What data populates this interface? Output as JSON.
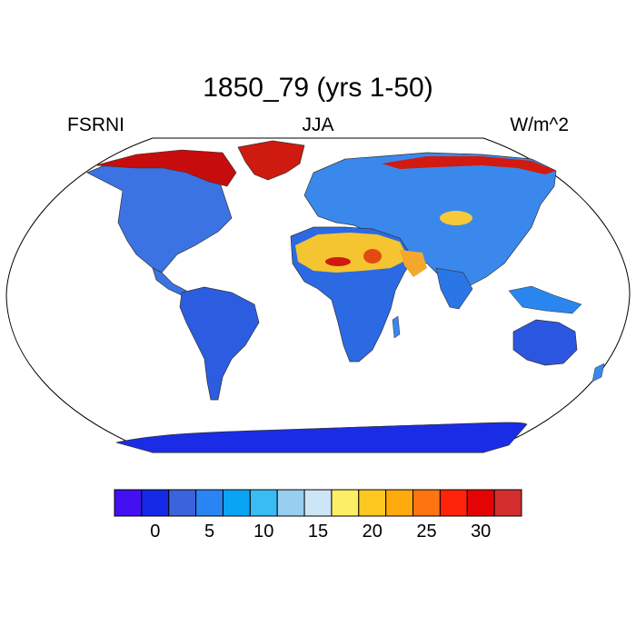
{
  "title": "1850_79 (yrs 1-50)",
  "left_label": "FSRNI",
  "center_label": "JJA",
  "right_label": "W/m^2",
  "colorbar": {
    "colors": [
      "#4410f2",
      "#1429e6",
      "#3b63dc",
      "#2a85f2",
      "#0aa4f5",
      "#39bbf3",
      "#98cff0",
      "#cde6f7",
      "#fdef65",
      "#fdc920",
      "#fea90c",
      "#fd7410",
      "#fe2409",
      "#e40405",
      "#d32f2f"
    ],
    "tick_labels": [
      "0",
      "5",
      "10",
      "15",
      "20",
      "25",
      "30"
    ]
  },
  "chart_data": {
    "type": "heatmap",
    "title": "1850_79 (yrs 1-50)",
    "variable": "FSRNI",
    "season": "JJA",
    "units": "W/m^2",
    "projection": "Robinson",
    "levels_ticks": [
      0,
      5,
      10,
      15,
      20,
      25,
      30
    ],
    "regions": [
      {
        "name": "Greenland",
        "value": 32
      },
      {
        "name": "Arctic coast",
        "value": 30
      },
      {
        "name": "Sahara",
        "value": 27
      },
      {
        "name": "Arabia",
        "value": 20
      },
      {
        "name": "Tibet",
        "value": 17
      },
      {
        "name": "North America",
        "value": 5
      },
      {
        "name": "South America",
        "value": 3
      },
      {
        "name": "Africa south",
        "value": 3
      },
      {
        "name": "Australia",
        "value": 3
      },
      {
        "name": "Antarctica",
        "value": 1
      }
    ]
  }
}
